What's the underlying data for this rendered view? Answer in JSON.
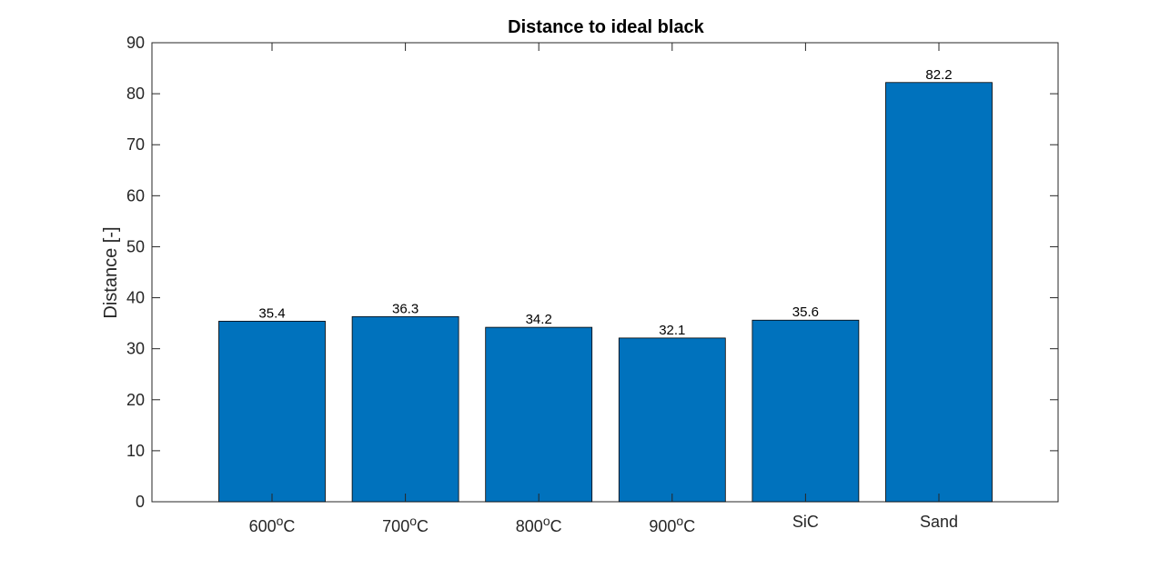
{
  "chart_data": {
    "type": "bar",
    "title": "Distance to ideal black",
    "xlabel": "",
    "ylabel": "Distance [-]",
    "categories": [
      "600°C",
      "700°C",
      "800°C",
      "900°C",
      "SiC",
      "Sand"
    ],
    "category_labels": [
      {
        "base": "600",
        "sup": "o",
        "suffix": "C"
      },
      {
        "base": "700",
        "sup": "o",
        "suffix": "C"
      },
      {
        "base": "800",
        "sup": "o",
        "suffix": "C"
      },
      {
        "base": "900",
        "sup": "o",
        "suffix": "C"
      },
      {
        "base": "SiC",
        "sup": "",
        "suffix": ""
      },
      {
        "base": "Sand",
        "sup": "",
        "suffix": ""
      }
    ],
    "values": [
      35.4,
      36.3,
      34.2,
      32.1,
      35.6,
      82.2
    ],
    "data_labels": [
      "35.4",
      "36.3",
      "34.2",
      "32.1",
      "35.6",
      "82.2"
    ],
    "ylim": [
      0,
      90
    ],
    "yticks": [
      0,
      10,
      20,
      30,
      40,
      50,
      60,
      70,
      80,
      90
    ],
    "grid": false,
    "colors": {
      "bar_fill": "#0072BD",
      "bar_edge": "#000000",
      "axis": "#262626"
    }
  }
}
